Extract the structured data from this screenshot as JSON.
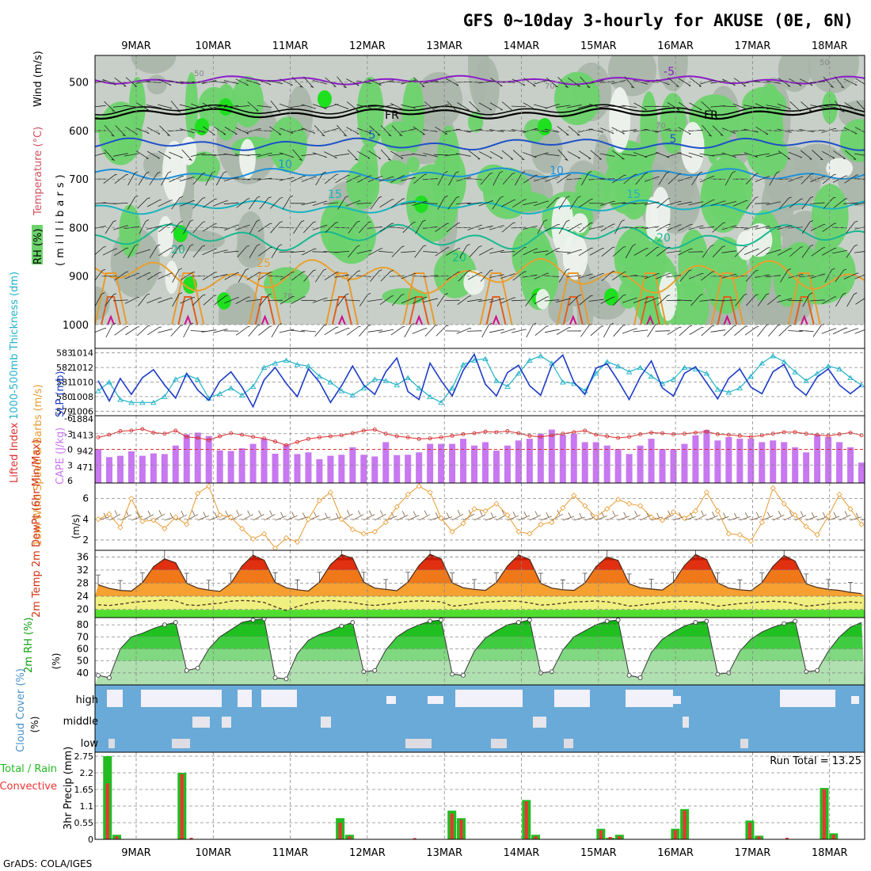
{
  "title": "GFS 0~10day 3-hourly for AKUSE (0E, 6N)",
  "footer": "GrADS: COLA/IGES",
  "dates": [
    "9MAR",
    "10MAR",
    "11MAR",
    "12MAR",
    "13MAR",
    "14MAR",
    "15MAR",
    "16MAR",
    "17MAR",
    "18MAR"
  ],
  "colors": {
    "rh_light": "#c8cfc8",
    "rh_mid": "#a9b5a9",
    "rh_green": "#6cd36c",
    "rh_bright": "#1ee01e",
    "thick": "#22b3c8",
    "slp": "#1e3cc8",
    "cape": "#c878f0",
    "li": "#d83030",
    "wind": "#e89a30",
    "barb": "#7a5a3a",
    "temp_red": "#e03010",
    "temp_org": "#f07818",
    "temp_lorg": "#f5a030",
    "dew_yel": "#f0f080",
    "dew_grn": "#50dd30",
    "rh_dark": "#10b010",
    "cloud": "#6aaad8",
    "precip_g": "#22bb22",
    "precip_r": "#ee3333"
  },
  "chart_data": [
    {
      "type": "heatmap",
      "panel": "upper-air",
      "ylabel_rh": "RH (%)",
      "ylabel_temp": "Temperature (°C)",
      "ylabel_wind": "Wind (m/s)",
      "ylabel_p": "(millibars)",
      "yticks": [
        "500",
        "600",
        "700",
        "800",
        "900",
        "1000"
      ],
      "yvalues": [
        500,
        600,
        700,
        800,
        900,
        1000
      ],
      "ylim": [
        445,
        1000
      ],
      "isotherm_labels": [
        "-5",
        "FR",
        "5",
        "10",
        "15",
        "20",
        "25"
      ],
      "isotherms": [
        {
          "label": "-5",
          "color": "#8c1cc8",
          "base": 496,
          "amp": 10
        },
        {
          "label": "FR",
          "color": "#000000",
          "base": 565,
          "amp": 12
        },
        {
          "label": "5",
          "color": "#1e50c8",
          "base": 628,
          "amp": 14
        },
        {
          "label": "10",
          "color": "#1e90d8",
          "base": 690,
          "amp": 14
        },
        {
          "label": "15",
          "color": "#18b4c0",
          "base": 758,
          "amp": 16
        },
        {
          "label": "20",
          "color": "#18b890",
          "base": 820,
          "amp": 30
        },
        {
          "label": "25",
          "color": "#e8a030",
          "base": 900,
          "amp": 40
        }
      ],
      "rh_levels": [
        "50",
        "70"
      ]
    },
    {
      "type": "line",
      "panel": "thickness-slp",
      "ylabel_left": "1000-500mb Thickness (dm)",
      "ylabel_right": "SLP (mb)",
      "left_ticks": [
        579,
        580,
        581,
        582,
        583
      ],
      "right_ticks": [
        1006,
        1008,
        1010,
        1012,
        1014
      ],
      "series": [
        {
          "name": "thickness",
          "values": [
            580.4,
            581.0,
            579.8,
            579.6,
            579.6,
            579.6,
            580.0,
            581.2,
            581.5,
            581.2,
            579.9,
            580.2,
            580.6,
            580.1,
            580.7,
            582.0,
            582.3,
            582.5,
            582.2,
            582.1,
            581.4,
            581.0,
            580.4,
            580.1,
            580.6,
            581.2,
            581.1,
            580.8,
            581.3,
            580.6,
            580.0,
            579.6,
            580.6,
            582.2,
            582.5,
            582.6,
            581.1,
            580.7,
            581.6,
            582.5,
            582.8,
            582.3,
            581.0,
            580.9,
            580.4,
            581.6,
            582.4,
            582.1,
            581.7,
            582.0,
            581.4,
            580.9,
            581.2,
            582.0,
            581.9,
            581.6,
            580.5,
            580.3,
            580.6,
            581.4,
            582.3,
            582.8,
            582.4,
            581.7,
            581.1,
            581.6,
            582.1,
            581.9,
            581.3,
            580.8
          ]
        },
        {
          "name": "slp",
          "values": [
            1010.2,
            1007.4,
            1010.5,
            1008.3,
            1010.6,
            1011.7,
            1009.6,
            1007.8,
            1011.2,
            1008.9,
            1007.5,
            1010.1,
            1011.4,
            1009.3,
            1006.6,
            1010.3,
            1012.0,
            1009.8,
            1008.0,
            1011.8,
            1010.0,
            1007.2,
            1009.5,
            1012.2,
            1009.6,
            1008.3,
            1011.4,
            1013.3,
            1008.7,
            1007.6,
            1012.6,
            1010.2,
            1008.1,
            1011.6,
            1013.8,
            1009.7,
            1008.1,
            1011.3,
            1012.3,
            1009.5,
            1008.2,
            1012.3,
            1013.7,
            1010.0,
            1008.3,
            1011.9,
            1012.5,
            1010.2,
            1007.6,
            1010.7,
            1012.9,
            1009.2,
            1008.1,
            1011.2,
            1012.1,
            1009.9,
            1007.7,
            1010.5,
            1011.8,
            1009.3,
            1008.4,
            1011.4,
            1012.4,
            1009.4,
            1008.2,
            1010.7,
            1011.8,
            1009.6,
            1008.4,
            1009.6
          ]
        }
      ]
    },
    {
      "type": "bar",
      "panel": "cape-li",
      "ylabel_left": "Lifted Index",
      "ylabel_right": "CAPE (J/kg)",
      "left_ticks": [
        "6",
        "3",
        "0",
        "-3",
        "-6"
      ],
      "right_ticks": [
        "471",
        "942",
        "1413",
        "1884"
      ],
      "series": [
        {
          "name": "cape",
          "values": [
            1000,
            760,
            800,
            930,
            800,
            870,
            850,
            1100,
            1430,
            1480,
            1380,
            960,
            940,
            1020,
            1150,
            1300,
            860,
            1120,
            850,
            900,
            700,
            800,
            830,
            1050,
            830,
            780,
            1200,
            820,
            830,
            900,
            1150,
            1150,
            1150,
            1300,
            1100,
            1200,
            950,
            1100,
            1250,
            1300,
            1450,
            1570,
            1420,
            1450,
            1200,
            1200,
            1100,
            1000,
            850,
            1100,
            1300,
            1000,
            1000,
            1150,
            1400,
            1560,
            1250,
            1350,
            1300,
            1300,
            1200,
            1250,
            1200,
            1050,
            900,
            1420,
            1350,
            1200,
            1050,
            600
          ]
        },
        {
          "name": "lifted_index",
          "values": [
            -2.3,
            -2.8,
            -3.5,
            -3.6,
            -3.9,
            -3.2,
            -3.0,
            -3.6,
            -2.4,
            -2.2,
            -1.8,
            -2.5,
            -3.1,
            -2.8,
            -2.4,
            -2.1,
            -1.5,
            -0.8,
            -1.4,
            -2.0,
            -2.3,
            -2.5,
            -2.7,
            -3.1,
            -3.6,
            -3.8,
            -3.0,
            -2.5,
            -2.3,
            -2.0,
            -2.1,
            -2.3,
            -2.6,
            -2.9,
            -3.1,
            -3.4,
            -3.3,
            -3.5,
            -3.1,
            -2.6,
            -2.4,
            -2.7,
            -3.0,
            -3.3,
            -3.6,
            -2.8,
            -2.5,
            -2.2,
            -2.4,
            -2.9,
            -3.2,
            -3.1,
            -2.9,
            -3.0,
            -3.2,
            -3.4,
            -2.9,
            -2.8,
            -2.6,
            -2.4,
            -2.7,
            -3.0,
            -3.3,
            -3.3,
            -3.0,
            -2.8,
            -2.6,
            -2.9,
            -3.2,
            -2.7
          ]
        }
      ]
    },
    {
      "type": "line",
      "panel": "wind10m",
      "ylabel": "10m Wind Speed & Barbs (m/s)",
      "yticks": [
        2,
        4,
        6
      ],
      "ylim": [
        1,
        7.5
      ],
      "values": [
        4.0,
        4.5,
        3.2,
        6.0,
        3.8,
        3.9,
        3.1,
        4.2,
        3.5,
        6.5,
        7.2,
        4.4,
        4.2,
        3.1,
        2.1,
        2.6,
        1.2,
        2.2,
        1.8,
        4.0,
        5.8,
        6.6,
        4.0,
        3.0,
        2.6,
        2.8,
        3.7,
        5.2,
        6.4,
        7.2,
        6.6,
        4.1,
        2.8,
        3.6,
        5.0,
        4.8,
        5.5,
        4.4,
        2.8,
        2.6,
        3.5,
        3.7,
        5.1,
        6.3,
        5.3,
        4.2,
        5.0,
        5.9,
        5.5,
        5.3,
        4.2,
        3.9,
        4.7,
        4.1,
        4.8,
        6.6,
        4.8,
        2.6,
        2.5,
        1.9,
        3.7,
        7.0,
        5.5,
        4.4,
        3.3,
        2.5,
        4.3,
        6.4,
        5.0,
        3.5
      ]
    },
    {
      "type": "area",
      "panel": "temp2m",
      "ylabel": "2m Temp 2m DewPt (6hr Min/Max)",
      "yticks": [
        20,
        24,
        28,
        32,
        36
      ],
      "ylim": [
        17.5,
        38
      ],
      "series": [
        {
          "name": "temp",
          "values": [
            27.5,
            26.4,
            25.8,
            25.6,
            28.1,
            33.0,
            35.4,
            34.2,
            28.0,
            26.5,
            25.9,
            25.5,
            28.0,
            33.2,
            36.5,
            35.0,
            28.2,
            26.6,
            26.0,
            25.6,
            28.3,
            33.6,
            36.7,
            35.6,
            28.3,
            26.5,
            26.1,
            25.7,
            28.3,
            33.4,
            36.8,
            35.4,
            28.1,
            26.6,
            26.1,
            25.8,
            28.2,
            33.2,
            36.6,
            35.2,
            28.0,
            26.5,
            26.0,
            25.8,
            28.0,
            33.0,
            36.0,
            34.9,
            27.8,
            26.6,
            26.2,
            25.9,
            28.3,
            33.4,
            36.7,
            35.2,
            28.1,
            26.5,
            26.0,
            25.7,
            28.1,
            33.1,
            36.4,
            34.7,
            27.8,
            26.7,
            26.1,
            25.8,
            25.2,
            24.8
          ]
        },
        {
          "name": "dewpoint",
          "values": [
            21.4,
            21.2,
            21.6,
            22.1,
            22.4,
            22.6,
            22.9,
            22.6,
            21.4,
            21.2,
            21.6,
            21.9,
            22.5,
            22.7,
            22.6,
            22.1,
            20.8,
            19.7,
            20.9,
            21.8,
            22.5,
            22.7,
            22.4,
            22.1,
            21.5,
            21.2,
            21.6,
            22.0,
            22.4,
            22.6,
            22.5,
            22.3,
            21.0,
            21.3,
            21.8,
            22.2,
            22.4,
            22.6,
            22.5,
            22.0,
            21.3,
            21.5,
            21.9,
            22.3,
            22.4,
            22.6,
            22.3,
            21.8,
            21.0,
            21.3,
            21.7,
            22.1,
            22.4,
            22.5,
            22.3,
            21.8,
            21.0,
            21.4,
            21.8,
            22.0,
            22.3,
            22.5,
            22.3,
            21.8,
            21.0,
            21.3,
            21.7,
            22.0,
            22.3,
            22.0
          ]
        }
      ]
    },
    {
      "type": "area",
      "panel": "rh2m",
      "ylabel": "2m RH (%)",
      "yticks": [
        40,
        50,
        60,
        70,
        80
      ],
      "ylim": [
        30,
        86
      ],
      "values": [
        38,
        36,
        60,
        70,
        73,
        77,
        80,
        82,
        42,
        44,
        60,
        70,
        76,
        82,
        84,
        85,
        36,
        35,
        56,
        67,
        72,
        75,
        79,
        82,
        41,
        42,
        59,
        70,
        76,
        80,
        83,
        84,
        39,
        38,
        58,
        69,
        75,
        80,
        82,
        84,
        40,
        41,
        59,
        70,
        75,
        80,
        83,
        84,
        38,
        36,
        57,
        68,
        74,
        79,
        82,
        83,
        39,
        40,
        58,
        68,
        74,
        78,
        81,
        83,
        41,
        42,
        58,
        70,
        78,
        82
      ]
    },
    {
      "type": "heatmap",
      "panel": "cloud",
      "ylabel": "Cloud Cover (%)",
      "rows": [
        "high",
        "middle",
        "low"
      ]
    },
    {
      "type": "bar",
      "panel": "precip",
      "ylabel": "3hr Precip (mm)",
      "ylabel_left": "Total / Rain",
      "ylabel_left2": "Convective",
      "run_total_label": "Run Total = 13.25",
      "yticks": [
        "0",
        "0.55",
        "1.1",
        "1.65",
        "2.2",
        "2.75"
      ],
      "ylim": [
        0,
        2.75
      ],
      "series": [
        {
          "name": "total",
          "values": [
            0,
            2.75,
            0.15,
            0,
            0,
            0,
            0,
            0,
            0,
            2.2,
            0,
            0,
            0,
            0,
            0,
            0,
            0,
            0,
            0,
            0,
            0,
            0,
            0,
            0,
            0,
            0,
            0.7,
            0.15,
            0,
            0,
            0,
            0,
            0,
            0,
            0,
            0,
            0,
            0,
            0.95,
            0.7,
            0,
            0,
            0,
            0,
            0,
            0,
            1.3,
            0.15,
            0,
            0,
            0,
            0,
            0,
            0,
            0.35,
            0.05,
            0.15,
            0,
            0,
            0,
            0,
            0,
            0.35,
            1.0,
            0,
            0,
            0,
            0,
            0,
            0,
            0.62,
            0.12,
            0,
            0,
            0,
            0,
            0,
            0,
            1.7,
            0.2,
            0,
            0,
            0
          ]
        },
        {
          "name": "convective",
          "values": [
            0,
            1.85,
            0.1,
            0,
            0,
            0,
            0,
            0,
            0,
            2.15,
            0.05,
            0,
            0,
            0,
            0,
            0,
            0,
            0,
            0,
            0,
            0,
            0,
            0,
            0,
            0,
            0,
            0.55,
            0.1,
            0,
            0,
            0,
            0,
            0,
            0,
            0.04,
            0,
            0,
            0,
            0.85,
            0.65,
            0,
            0,
            0,
            0,
            0,
            0,
            1.25,
            0.1,
            0,
            0,
            0,
            0,
            0,
            0,
            0.3,
            0.08,
            0.1,
            0,
            0,
            0,
            0,
            0,
            0.3,
            0.95,
            0,
            0,
            0,
            0,
            0,
            0,
            0.55,
            0.1,
            0,
            0,
            0.05,
            0,
            0,
            0,
            1.65,
            0.15,
            0,
            0,
            0
          ]
        }
      ]
    }
  ]
}
